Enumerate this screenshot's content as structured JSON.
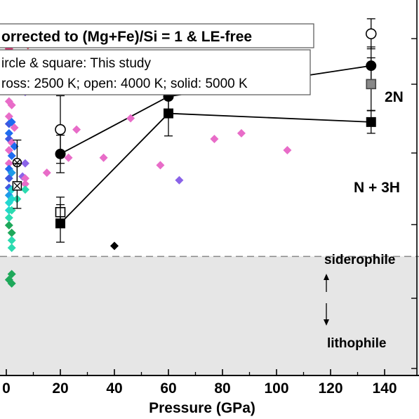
{
  "chart_data": {
    "type": "scatter",
    "xlabel": "Pressure (GPa)",
    "ylabel": "",
    "xlim": [
      -2,
      152
    ],
    "ylim": [
      0,
      100
    ],
    "x_ticks": [
      0,
      20,
      40,
      60,
      80,
      100,
      120,
      140
    ],
    "x_tick_labels": [
      "0",
      "20",
      "40",
      "60",
      "80",
      "100",
      "120",
      "140"
    ],
    "boundary_level": 31.7,
    "grid": false,
    "legend_box_1": "orrected to (Mg+Fe)/Si = 1 & LE-free",
    "legend_box_2_lines": [
      "ircle & square: This study",
      "ross: 2500 K; open: 4000 K; solid: 5000 K"
    ],
    "region_labels": {
      "upper": "siderophile",
      "lower": "lithophile"
    },
    "series": [
      {
        "name": "2N",
        "marker": "circle",
        "solid_points": [
          {
            "x": 20,
            "y": 59,
            "err": 5
          },
          {
            "x": 60,
            "y": 74.3,
            "err": 5
          },
          {
            "x": 135,
            "y": 82.5,
            "err": 5
          }
        ],
        "open_points": [
          {
            "x": 20,
            "y": 65.5,
            "err": 9
          },
          {
            "x": 135,
            "y": 91,
            "err": 4
          }
        ]
      },
      {
        "name": "N + 3H",
        "marker": "square",
        "solid_points": [
          {
            "x": 20,
            "y": 40.5,
            "err": 5
          },
          {
            "x": 60,
            "y": 69.8,
            "err": 6
          },
          {
            "x": 135,
            "y": 67.5,
            "err": 3
          }
        ],
        "open_points": [
          {
            "x": 20,
            "y": 43.5,
            "err": 4
          }
        ],
        "gray_points": [
          {
            "x": 135,
            "y": 77.6,
            "err": 7
          }
        ]
      },
      {
        "name": "",
        "marker": "crossed",
        "points": [
          {
            "x": 4,
            "y": 56.7,
            "err": 6,
            "type": "circle"
          },
          {
            "x": 4,
            "y": 50.5,
            "err": 6,
            "type": "square"
          }
        ]
      }
    ],
    "literature_points": [
      {
        "x": 1,
        "y": 87,
        "color": "#e8397a"
      },
      {
        "x": 1,
        "y": 85.5,
        "color": "#e83a60"
      },
      {
        "x": 1,
        "y": 82,
        "color": "#e6256b"
      },
      {
        "x": 1,
        "y": 80,
        "color": "#e86cc8"
      },
      {
        "x": 1,
        "y": 78,
        "color": "#d13472"
      },
      {
        "x": 1,
        "y": 76.5,
        "color": "#e8397a"
      },
      {
        "x": 1,
        "y": 73,
        "color": "#e86cc8"
      },
      {
        "x": 1,
        "y": 69,
        "color": "#e86cc8"
      },
      {
        "x": 1,
        "y": 67,
        "color": "#3f58e0"
      },
      {
        "x": 1,
        "y": 64.5,
        "color": "#1e6cf0"
      },
      {
        "x": 1,
        "y": 63,
        "color": "#3f58e0"
      },
      {
        "x": 1,
        "y": 60,
        "color": "#e86cc8"
      },
      {
        "x": 1,
        "y": 56.5,
        "color": "#e86cc8"
      },
      {
        "x": 1,
        "y": 55,
        "color": "#1e6cf0"
      },
      {
        "x": 1,
        "y": 52.5,
        "color": "#3f58e0"
      },
      {
        "x": 1,
        "y": 50,
        "color": "#3f58e0"
      },
      {
        "x": 1,
        "y": 48,
        "color": "#1e9be8"
      },
      {
        "x": 1,
        "y": 46,
        "color": "#22d8d0"
      },
      {
        "x": 1,
        "y": 44,
        "color": "#22d8d0"
      },
      {
        "x": 1,
        "y": 42,
        "color": "#2bdbb0"
      },
      {
        "x": 1,
        "y": 40,
        "color": "#1ea85a"
      },
      {
        "x": 1,
        "y": 25.5,
        "color": "#1ea85a"
      },
      {
        "x": 2,
        "y": 84,
        "color": "#e86cc8"
      },
      {
        "x": 2,
        "y": 79,
        "color": "#3f58e0"
      },
      {
        "x": 2,
        "y": 72,
        "color": "#e86cc8"
      },
      {
        "x": 2,
        "y": 67.5,
        "color": "#1e6cf0"
      },
      {
        "x": 2,
        "y": 62,
        "color": "#e86cc8"
      },
      {
        "x": 2,
        "y": 58.5,
        "color": "#1e6cf0"
      },
      {
        "x": 2,
        "y": 54,
        "color": "#1e9be8"
      },
      {
        "x": 2,
        "y": 49.5,
        "color": "#22d8d0"
      },
      {
        "x": 2,
        "y": 47,
        "color": "#22d8d0"
      },
      {
        "x": 2,
        "y": 44,
        "color": "#2bdbb0"
      },
      {
        "x": 2,
        "y": 38,
        "color": "#1ea85a"
      },
      {
        "x": 2,
        "y": 36,
        "color": "#2bdbb0"
      },
      {
        "x": 2,
        "y": 34,
        "color": "#2bdbb0"
      },
      {
        "x": 2,
        "y": 27,
        "color": "#1ea85a"
      },
      {
        "x": 2,
        "y": 24.5,
        "color": "#1ea85a"
      },
      {
        "x": 3,
        "y": 66,
        "color": "#e86cc8"
      },
      {
        "x": 3,
        "y": 61,
        "color": "#1e6cf0"
      },
      {
        "x": 3,
        "y": 80,
        "color": "#8a63e8"
      },
      {
        "x": 4,
        "y": 47,
        "color": "#2bdbb0"
      },
      {
        "x": 6,
        "y": 53,
        "color": "#8a63e8"
      },
      {
        "x": 7,
        "y": 75.5,
        "color": "#8a63e8"
      },
      {
        "x": 7,
        "y": 56.5,
        "color": "#8a63e8"
      },
      {
        "x": 7,
        "y": 52.5,
        "color": "#e86cc8"
      },
      {
        "x": 7,
        "y": 51,
        "color": "#e86cc8"
      },
      {
        "x": 7,
        "y": 49.5,
        "color": "#2bdbb0"
      },
      {
        "x": 8,
        "y": 88,
        "color": "#e62e4a"
      },
      {
        "x": 15,
        "y": 54,
        "color": "#e86cc8"
      },
      {
        "x": 23,
        "y": 58,
        "color": "#e86cc8"
      },
      {
        "x": 26,
        "y": 65.5,
        "color": "#e86cc8"
      },
      {
        "x": 36,
        "y": 58,
        "color": "#e86cc8"
      },
      {
        "x": 40,
        "y": 34.5,
        "color": "#000000"
      },
      {
        "x": 46,
        "y": 68.5,
        "color": "#e86cc8"
      },
      {
        "x": 57,
        "y": 56,
        "color": "#e86cc8"
      },
      {
        "x": 64,
        "y": 52,
        "color": "#8a63e8"
      },
      {
        "x": 77,
        "y": 63,
        "color": "#e86cc8"
      },
      {
        "x": 87,
        "y": 64.5,
        "color": "#e86cc8"
      },
      {
        "x": 104,
        "y": 60,
        "color": "#e86cc8"
      }
    ]
  }
}
